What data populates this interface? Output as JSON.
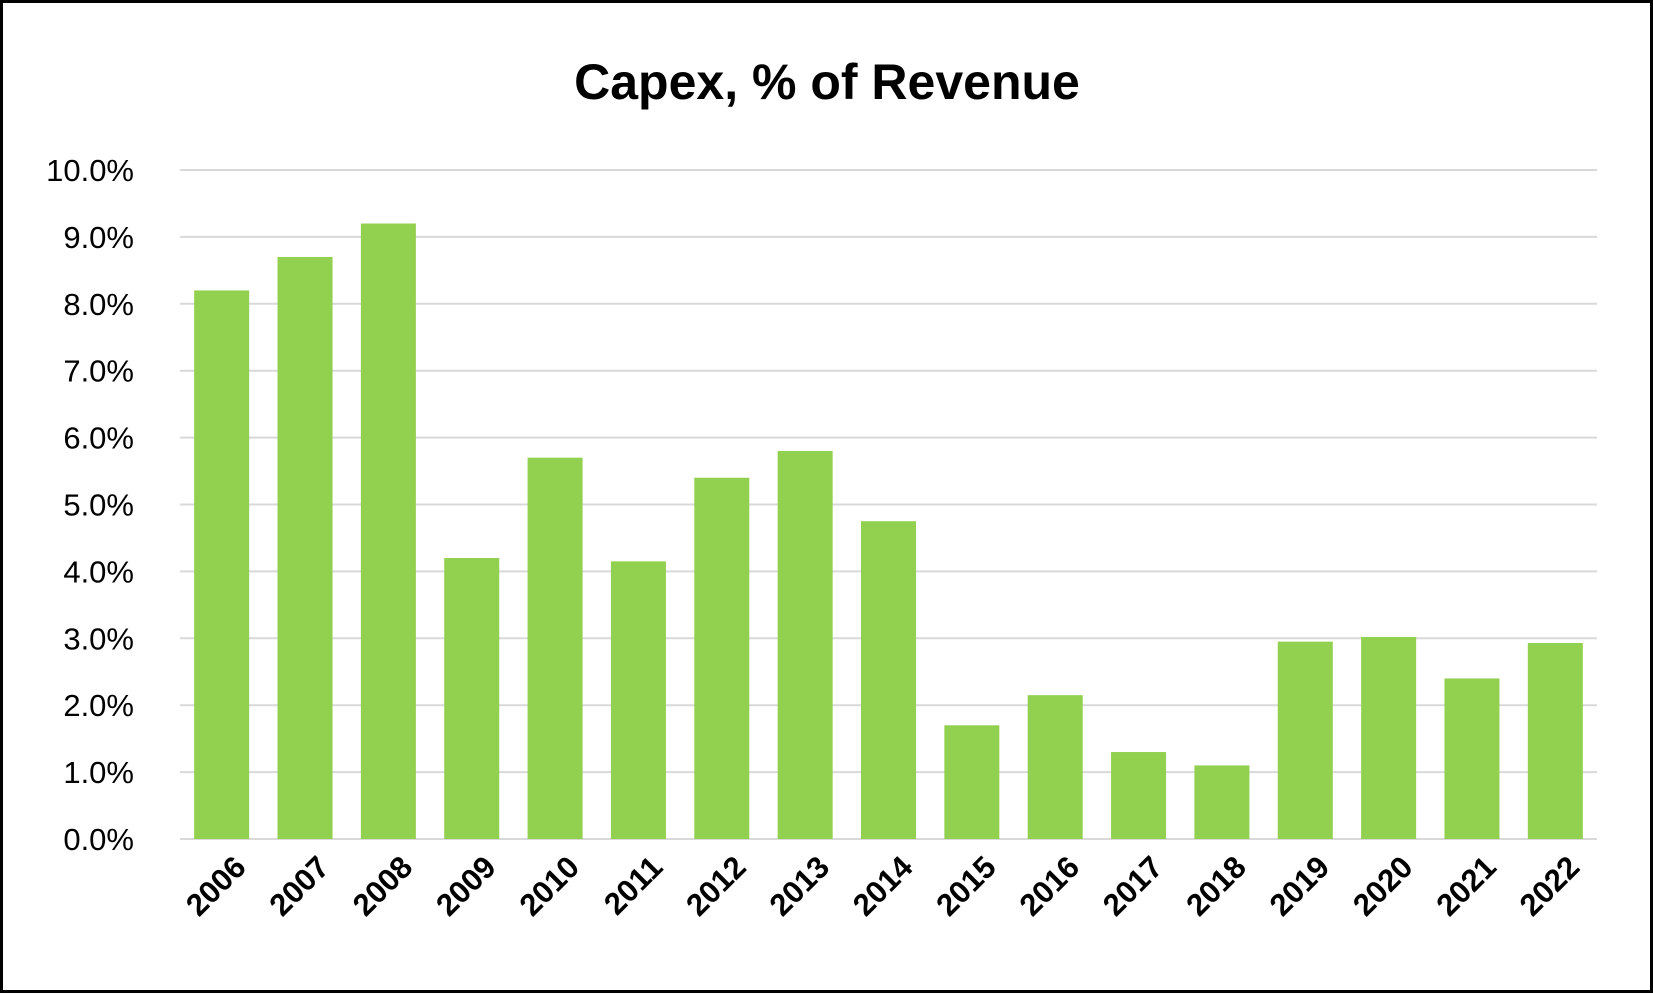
{
  "chart_data": {
    "type": "bar",
    "title": "Capex, % of Revenue",
    "xlabel": "",
    "ylabel": "",
    "categories": [
      "2006",
      "2007",
      "2008",
      "2009",
      "2010",
      "2011",
      "2012",
      "2013",
      "2014",
      "2015",
      "2016",
      "2017",
      "2018",
      "2019",
      "2020",
      "2021",
      "2022"
    ],
    "values": [
      8.2,
      8.7,
      9.2,
      4.2,
      5.7,
      4.15,
      5.4,
      5.8,
      4.75,
      1.7,
      2.15,
      1.3,
      1.1,
      2.95,
      3.02,
      2.4,
      2.93
    ],
    "ylim": [
      0,
      10
    ],
    "yticks": [
      0,
      1,
      2,
      3,
      4,
      5,
      6,
      7,
      8,
      9,
      10
    ],
    "ytick_labels": [
      "0.0%",
      "1.0%",
      "2.0%",
      "3.0%",
      "4.0%",
      "5.0%",
      "6.0%",
      "7.0%",
      "8.0%",
      "9.0%",
      "10.0%"
    ],
    "bar_color": "#92d050",
    "grid": true,
    "legend": "none"
  }
}
